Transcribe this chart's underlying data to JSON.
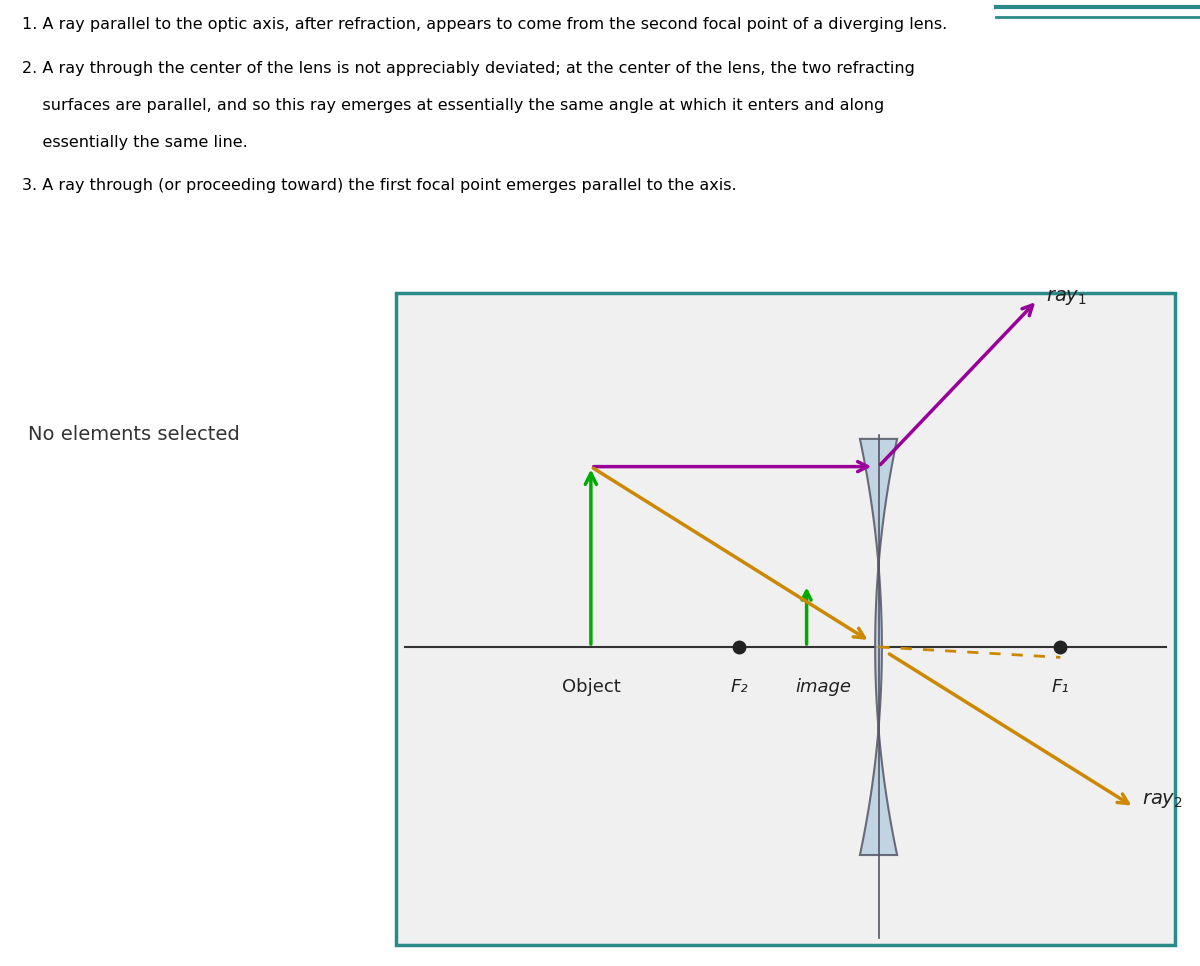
{
  "bg_text_panel": "#d6eef8",
  "bg_toolbar": "#555a63",
  "bg_left_panel": "#c8c8c8",
  "bg_diagram_outer": "#e0e0e0",
  "bg_diagram_inner": "#eeeeee",
  "text_lines": [
    "1. A ray parallel to the optic axis, after refraction, appears to come from the second focal point of a diverging lens.",
    "2. A ray through the center of the lens is not appreciably deviated; at the center of the lens, the two refracting",
    "    surfaces are parallel, and so this ray emerges at essentially the same angle at which it enters and along",
    "    essentially the same line.",
    "3. A ray through (or proceeding toward) the first focal point emerges parallel to the axis."
  ],
  "left_label": "No elements selected",
  "lens_color": "#b8cfe0",
  "lens_edge_color": "#555566",
  "axis_color": "#333333",
  "ray1_color": "#990099",
  "ray2_color": "#cc8800",
  "green_color": "#00aa00",
  "dot_color": "#222222",
  "object_label": "Object",
  "F2_label": "F₂",
  "image_label": "image",
  "F1_label": "F₁",
  "ray1_label": "ray",
  "ray2_label": "ray",
  "teal_color": "#2a8a8a",
  "toolbar_bg": "#555a63"
}
